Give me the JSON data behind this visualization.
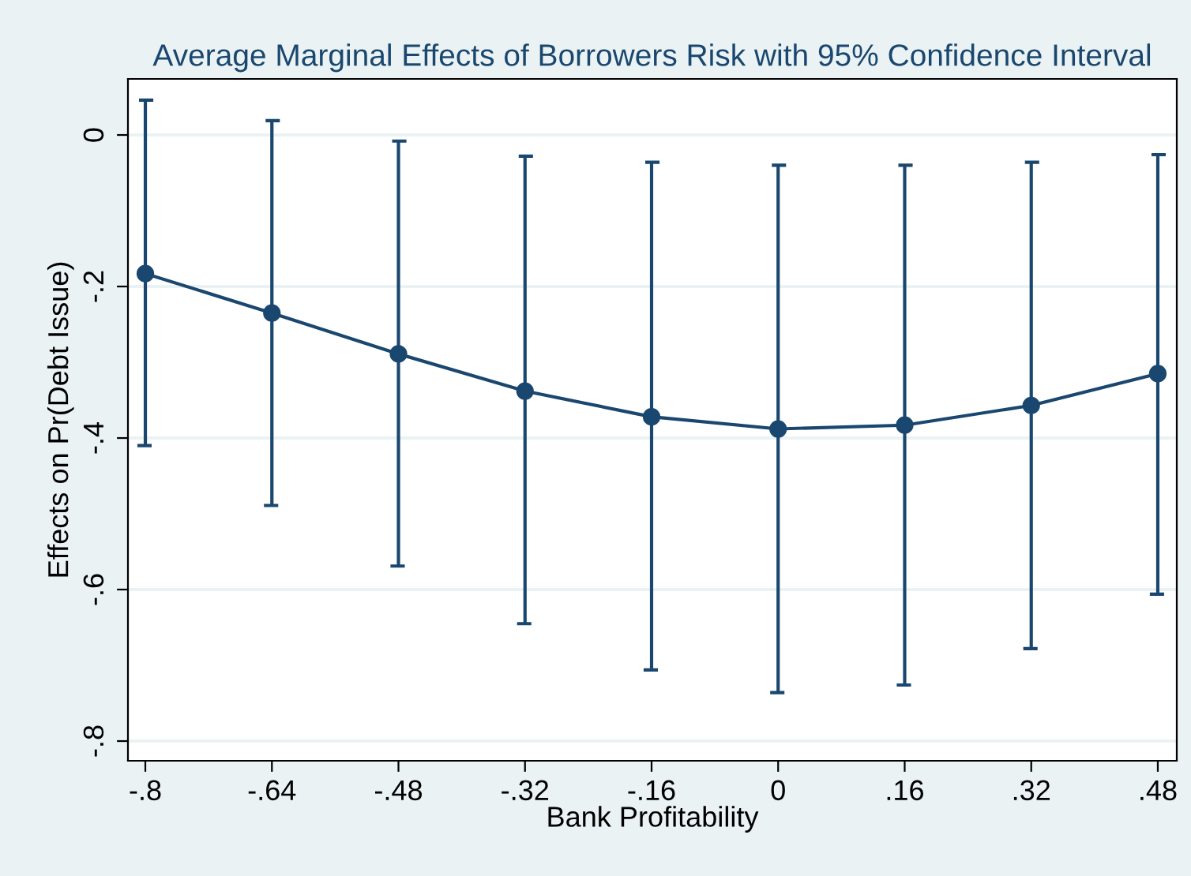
{
  "chart_data": {
    "type": "line",
    "title": "Average Marginal Effects of Borrowers Risk with 95% Confidence Interval",
    "xlabel": "Bank Profitability",
    "ylabel": "Effects on Pr(Debt Issue)",
    "x": [
      -0.8,
      -0.64,
      -0.48,
      -0.32,
      -0.16,
      0,
      0.16,
      0.32,
      0.48
    ],
    "series": [
      {
        "color": "#1a476f",
        "values": [
          -0.183,
          -0.235,
          -0.289,
          -0.338,
          -0.372,
          -0.388,
          -0.383,
          -0.357,
          -0.315
        ],
        "errors": [
          [
            -0.41,
            0.046
          ],
          [
            -0.489,
            0.019
          ],
          [
            -0.569,
            -0.008
          ],
          [
            -0.645,
            -0.028
          ],
          [
            -0.706,
            -0.036
          ],
          [
            -0.736,
            -0.04
          ],
          [
            -0.726,
            -0.04
          ],
          [
            -0.678,
            -0.036
          ],
          [
            -0.606,
            -0.026
          ]
        ]
      }
    ],
    "xlim": [
      -0.822,
      0.504
    ],
    "ylim": [
      -0.826,
      0.074
    ],
    "xticks": [
      {
        "value": -0.8,
        "label": "-.8"
      },
      {
        "value": -0.64,
        "label": "-.64"
      },
      {
        "value": -0.48,
        "label": "-.48"
      },
      {
        "value": -0.32,
        "label": "-.32"
      },
      {
        "value": -0.16,
        "label": "-.16"
      },
      0,
      {
        "value": 0.16,
        "label": ".16"
      },
      {
        "value": 0.32,
        "label": ".32"
      },
      {
        "value": 0.48,
        "label": ".48"
      }
    ],
    "yticks": [
      0,
      {
        "value": -0.2,
        "label": "-.2"
      },
      {
        "value": -0.4,
        "label": "-.4"
      },
      {
        "value": -0.6,
        "label": "-.6"
      },
      {
        "value": -0.8,
        "label": "-.8"
      }
    ],
    "grid": "y",
    "marker": "circle",
    "line_style": "solid",
    "legend": false
  }
}
